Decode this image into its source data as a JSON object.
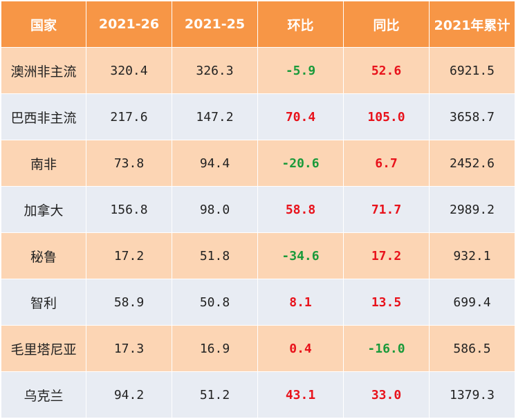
{
  "table": {
    "headers": [
      "国家",
      "2021-26",
      "2021-25",
      "环比",
      "同比",
      "2021年累计"
    ],
    "rows": [
      [
        "澳洲非主流",
        "320.4",
        "326.3",
        "-5.9",
        "52.6",
        "6921.5"
      ],
      [
        "巴西非主流",
        "217.6",
        "147.2",
        "70.4",
        "105.0",
        "3658.7"
      ],
      [
        "南非",
        "73.8",
        "94.4",
        "-20.6",
        "6.7",
        "2452.6"
      ],
      [
        "加拿大",
        "156.8",
        "98.0",
        "58.8",
        "71.7",
        "2989.2"
      ],
      [
        "秘鲁",
        "17.2",
        "51.8",
        "-34.6",
        "17.2",
        "932.1"
      ],
      [
        "智利",
        "58.9",
        "50.8",
        "8.1",
        "13.5",
        "699.4"
      ],
      [
        "毛里塔尼亚",
        "17.3",
        "16.9",
        "0.4",
        "-16.0",
        "586.5"
      ],
      [
        "乌克兰",
        "94.2",
        "51.2",
        "43.1",
        "33.0",
        "1379.3"
      ]
    ]
  },
  "colors": {
    "header_bg": "#F79646",
    "row_odd_bg": "#FCD5B4",
    "row_even_bg": "#E8ECF3",
    "positive_text": "#E8121B",
    "negative_text": "#1A9A3A"
  }
}
